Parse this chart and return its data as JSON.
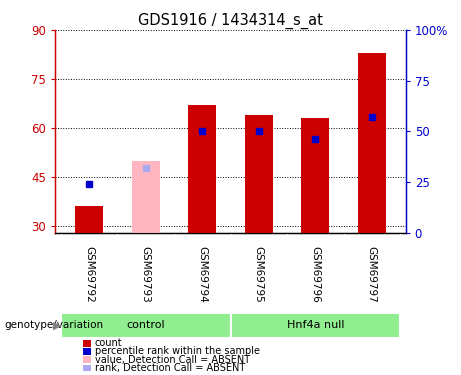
{
  "title": "GDS1916 / 1434314_s_at",
  "samples": [
    "GSM69792",
    "GSM69793",
    "GSM69794",
    "GSM69795",
    "GSM69796",
    "GSM69797"
  ],
  "absent": [
    false,
    true,
    false,
    false,
    false,
    false
  ],
  "count_values": [
    36,
    50,
    67,
    64,
    63,
    83
  ],
  "rank_values": [
    24,
    32,
    50,
    50,
    46,
    57
  ],
  "ylim_left": [
    28,
    90
  ],
  "ylim_right": [
    0,
    100
  ],
  "yticks_left": [
    30,
    45,
    60,
    75,
    90
  ],
  "yticks_right": [
    0,
    25,
    50,
    75,
    100
  ],
  "ytick_labels_right": [
    "0",
    "25",
    "50",
    "75",
    "100%"
  ],
  "bar_color_present": "#cc0000",
  "bar_color_absent": "#ffb6c1",
  "rank_color_present": "#0000cc",
  "rank_color_absent": "#aaaaee",
  "bar_width": 0.5,
  "background_color": "#ffffff",
  "left_label_color": "#cc0000",
  "right_label_color": "#0000cc",
  "group_labels": [
    "control",
    "Hnf4a null"
  ],
  "group_ranges": [
    [
      0,
      2
    ],
    [
      3,
      5
    ]
  ],
  "group_color": "#90EE90",
  "legend_items": [
    {
      "label": "count",
      "color": "#cc0000"
    },
    {
      "label": "percentile rank within the sample",
      "color": "#0000cc"
    },
    {
      "label": "value, Detection Call = ABSENT",
      "color": "#ffb6c1"
    },
    {
      "label": "rank, Detection Call = ABSENT",
      "color": "#aaaaee"
    }
  ],
  "genotype_label": "genotype/variation"
}
